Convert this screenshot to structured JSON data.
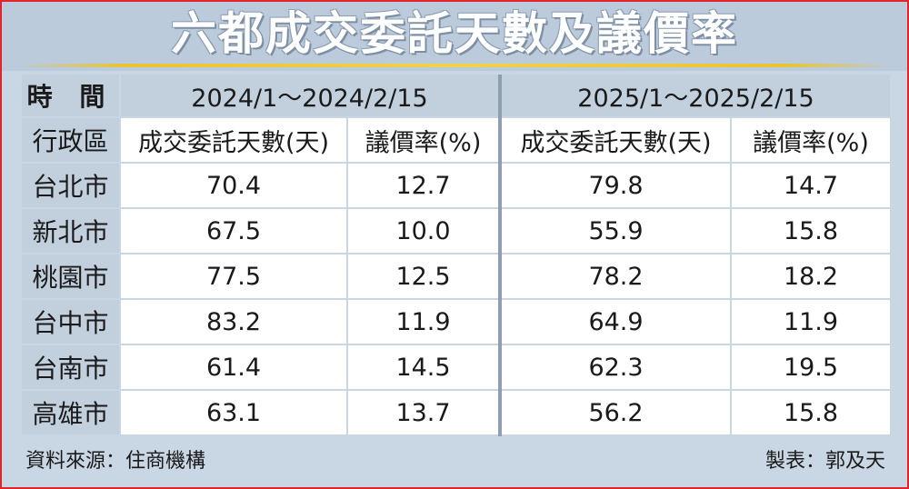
{
  "title": "六都成交委託天數及議價率",
  "header": {
    "corner_top": "時 間",
    "period_2024": "2024/1～2024/2/15",
    "period_2025": "2025/1～2025/2/15",
    "corner_bottom": "行政區",
    "col_days": "成交委託天數(天)",
    "col_rate": "議價率(%)"
  },
  "rows": [
    {
      "city": "台北市",
      "days_2024": "70.4",
      "rate_2024": "12.7",
      "days_2025": "79.8",
      "rate_2025": "14.7"
    },
    {
      "city": "新北市",
      "days_2024": "67.5",
      "rate_2024": "10.0",
      "days_2025": "55.9",
      "rate_2025": "15.8"
    },
    {
      "city": "桃園市",
      "days_2024": "77.5",
      "rate_2024": "12.5",
      "days_2025": "78.2",
      "rate_2025": "18.2"
    },
    {
      "city": "台中市",
      "days_2024": "83.2",
      "rate_2024": "11.9",
      "days_2025": "64.9",
      "rate_2025": "11.9"
    },
    {
      "city": "台南市",
      "days_2024": "61.4",
      "rate_2024": "14.5",
      "days_2025": "62.3",
      "rate_2025": "19.5"
    },
    {
      "city": "高雄市",
      "days_2024": "63.1",
      "rate_2024": "13.7",
      "days_2025": "56.2",
      "rate_2025": "15.8"
    }
  ],
  "footer": {
    "source": "資料來源：住商機構",
    "credit": "製表：郭及天"
  },
  "chart_data": {
    "type": "table",
    "title": "六都成交委託天數及議價率",
    "columns": [
      "行政區",
      "2024/1～2024/2/15 成交委託天數(天)",
      "2024/1～2024/2/15 議價率(%)",
      "2025/1～2025/2/15 成交委託天數(天)",
      "2025/1～2025/2/15 議價率(%)"
    ],
    "categories": [
      "台北市",
      "新北市",
      "桃園市",
      "台中市",
      "台南市",
      "高雄市"
    ],
    "series": [
      {
        "name": "2024/1～2024/2/15 成交委託天數(天)",
        "values": [
          70.4,
          67.5,
          77.5,
          83.2,
          61.4,
          63.1
        ]
      },
      {
        "name": "2024/1～2024/2/15 議價率(%)",
        "values": [
          12.7,
          10.0,
          12.5,
          11.9,
          14.5,
          13.7
        ]
      },
      {
        "name": "2025/1～2025/2/15 成交委託天數(天)",
        "values": [
          79.8,
          55.9,
          78.2,
          64.9,
          62.3,
          56.2
        ]
      },
      {
        "name": "2025/1～2025/2/15 議價率(%)",
        "values": [
          14.7,
          15.8,
          18.2,
          11.9,
          19.5,
          15.8
        ]
      }
    ]
  }
}
